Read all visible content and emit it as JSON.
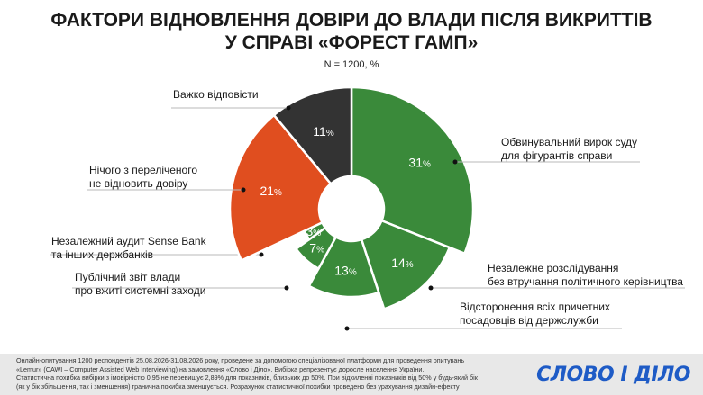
{
  "title_line1": "ФАКТОРИ ВІДНОВЛЕННЯ ДОВІРИ ДО ВЛАДИ ПІСЛЯ ВИКРИТТІВ",
  "title_line2": "У СПРАВІ «ФОРЕСТ ГАМП»",
  "subtitle": "N = 1200, %",
  "footer": {
    "lines": [
      "Онлайн-опитування 1200 респондентів 25.08.2026-31.08.2026 року, проведене за допомогою спеціалізованої платформи для проведення опитувань",
      "«Lemur» (CAWI – Computer Assisted Web Interviewing) на замовлення «Слово і Діло». Вибірка репрезентує доросле населення України.",
      "Статистична похибка вибірки з імовірністю 0,95 не перевищує 2,89% для показників, близьких до 50%. При відхиленні показників від 50% у будь-який бік",
      "(як у бік збільшення, так і зменшення) гранична похибка зменшується. Розрахунок статистичної похибки проведено без урахування дизайн-ефекту"
    ],
    "logo": "СЛОВО І ДІЛО"
  },
  "colors": {
    "green": "#3a8a3a",
    "orange": "#e04e1f",
    "dark": "#333333"
  },
  "chart_data": {
    "type": "pie",
    "variant": "donut",
    "unit": "%",
    "slices": [
      {
        "label_lines": [
          "Обвинувальний вирок суду",
          "для фігурантів справи"
        ],
        "value": 31,
        "color": "#3a8a3a"
      },
      {
        "label_lines": [
          "Незалежне розслідування",
          "без втручання політичного керівництва"
        ],
        "value": 14,
        "color": "#3a8a3a"
      },
      {
        "label_lines": [
          "Відсторонення всіх причетних",
          "посадовців від держслужби"
        ],
        "value": 13,
        "color": "#3a8a3a"
      },
      {
        "label_lines": [
          "Публічний звіт влади",
          "про вжиті системні заходи"
        ],
        "value": 7,
        "color": "#3a8a3a"
      },
      {
        "label_lines": [
          "Незалежний аудит Sense Bank",
          "та інших держбанків"
        ],
        "value": 3,
        "color": "#3a8a3a"
      },
      {
        "label_lines": [
          "Нічого з переліченого",
          "не відновить довіру"
        ],
        "value": 21,
        "color": "#e04e1f"
      },
      {
        "label_lines": [
          "Важко відповісти"
        ],
        "value": 11,
        "color": "#333333"
      }
    ]
  }
}
